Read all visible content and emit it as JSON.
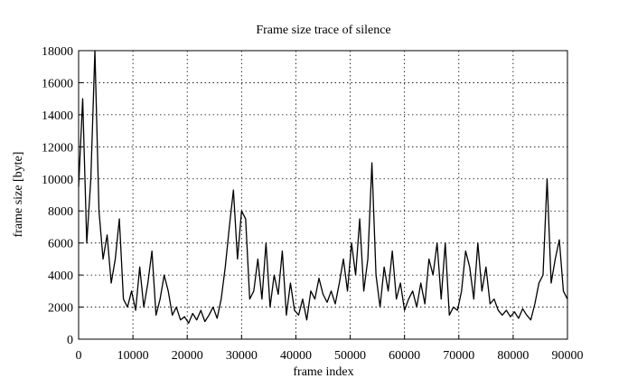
{
  "chart_data": {
    "type": "line",
    "title": "Frame size trace of silence",
    "xlabel": "frame index",
    "ylabel": "frame size [byte]",
    "x": [
      0,
      750,
      1500,
      2250,
      3000,
      3750,
      4500,
      5250,
      6000,
      6750,
      7500,
      8250,
      9000,
      9750,
      10500,
      11250,
      12000,
      12750,
      13500,
      14250,
      15000,
      15750,
      16500,
      17250,
      18000,
      18750,
      19500,
      20250,
      21000,
      21750,
      22500,
      23250,
      24000,
      24750,
      25500,
      26250,
      27000,
      27750,
      28500,
      29250,
      30000,
      30750,
      31500,
      32250,
      33000,
      33750,
      34500,
      35250,
      36000,
      36750,
      37500,
      38250,
      39000,
      39750,
      40500,
      41250,
      42000,
      42750,
      43500,
      44250,
      45000,
      45750,
      46500,
      47250,
      48000,
      48750,
      49500,
      50250,
      51000,
      51750,
      52500,
      53250,
      54000,
      54750,
      55500,
      56250,
      57000,
      57750,
      58500,
      59250,
      60000,
      60750,
      61500,
      62250,
      63000,
      63750,
      64500,
      65250,
      66000,
      66750,
      67500,
      68250,
      69000,
      69750,
      70500,
      71250,
      72000,
      72750,
      73500,
      74250,
      75000,
      75750,
      76500,
      77250,
      78000,
      78750,
      79500,
      80250,
      81000,
      81750,
      82500,
      83250,
      84000,
      84750,
      85500,
      86250,
      87000,
      87750,
      88500,
      89250,
      90000
    ],
    "values": [
      9500,
      15000,
      6000,
      10000,
      18000,
      8000,
      5000,
      6500,
      3500,
      5000,
      7500,
      2500,
      2000,
      3000,
      1800,
      4500,
      2000,
      3500,
      5500,
      1500,
      2500,
      4000,
      3000,
      1500,
      2000,
      1200,
      1400,
      1000,
      1600,
      1200,
      1800,
      1100,
      1500,
      2000,
      1300,
      2500,
      4500,
      7000,
      9300,
      5000,
      8000,
      7500,
      2500,
      3000,
      5000,
      2500,
      6000,
      2000,
      4000,
      2800,
      5500,
      1500,
      3500,
      1800,
      1500,
      2500,
      1200,
      3000,
      2500,
      3800,
      2800,
      2300,
      3000,
      2200,
      3500,
      5000,
      3000,
      6000,
      4000,
      7500,
      3000,
      5000,
      11000,
      4000,
      2000,
      4500,
      3000,
      5500,
      2500,
      3500,
      1800,
      2500,
      3000,
      2000,
      3500,
      2200,
      5000,
      4000,
      6000,
      2500,
      6000,
      1500,
      2000,
      1800,
      3000,
      5500,
      4500,
      2500,
      6000,
      3000,
      4500,
      2200,
      2500,
      1800,
      1500,
      1800,
      1400,
      1700,
      1300,
      1900,
      1500,
      1200,
      2200,
      3500,
      4000,
      10000,
      3500,
      5000,
      6200,
      3000,
      2500
    ],
    "color": "#000000",
    "xlim": [
      0,
      90000
    ],
    "xticks": [
      0,
      10000,
      20000,
      30000,
      40000,
      50000,
      60000,
      70000,
      80000,
      90000
    ],
    "ylim": [
      0,
      18000
    ],
    "yticks": [
      0,
      2000,
      4000,
      6000,
      8000,
      10000,
      12000,
      14000,
      16000,
      18000
    ],
    "grid": true
  }
}
